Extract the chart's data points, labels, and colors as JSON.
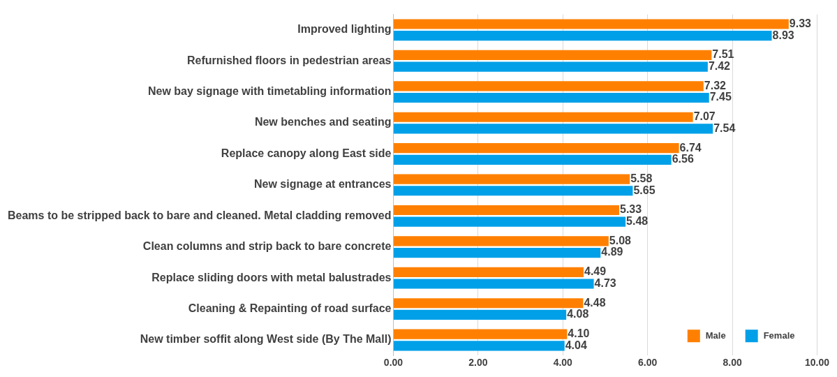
{
  "chart_data": {
    "type": "bar",
    "orientation": "horizontal",
    "categories": [
      "Improved lighting",
      "Refurnished floors in pedestrian areas",
      "New bay signage with timetabling information",
      "New benches and seating",
      "Replace canopy along East side",
      "New signage at entrances",
      "Beams to be stripped back to bare and cleaned. Metal cladding removed",
      "Clean columns and strip back to bare concrete",
      "Replace sliding doors with metal balustrades",
      "Cleaning & Repainting of road surface",
      "New timber soffit along West side (By The Mall)"
    ],
    "series": [
      {
        "name": "Male",
        "color": "#ff8000",
        "values": [
          9.33,
          7.51,
          7.32,
          7.07,
          6.74,
          5.58,
          5.33,
          5.08,
          4.49,
          4.48,
          4.1
        ],
        "value_labels": [
          "9.33",
          "7.51",
          "7.32",
          "7.07",
          "6.74",
          "5.58",
          "5.33",
          "5.08",
          "4.49",
          "4.48",
          "4.10"
        ]
      },
      {
        "name": "Female",
        "color": "#00a0e8",
        "values": [
          8.93,
          7.42,
          7.45,
          7.54,
          6.56,
          5.65,
          5.48,
          4.89,
          4.73,
          4.08,
          4.04
        ],
        "value_labels": [
          "8.93",
          "7.42",
          "7.45",
          "7.54",
          "6.56",
          "5.65",
          "5.48",
          "4.89",
          "4.73",
          "4.08",
          "4.04"
        ]
      }
    ],
    "xlim": [
      0,
      10
    ],
    "xticks": [
      {
        "value": 0,
        "label": "0.00"
      },
      {
        "value": 2,
        "label": "2.00"
      },
      {
        "value": 4,
        "label": "4.00"
      },
      {
        "value": 6,
        "label": "6.00"
      },
      {
        "value": 8,
        "label": "8.00"
      },
      {
        "value": 10,
        "label": "10.00"
      }
    ],
    "grid": "x",
    "legend": "bottom right"
  }
}
